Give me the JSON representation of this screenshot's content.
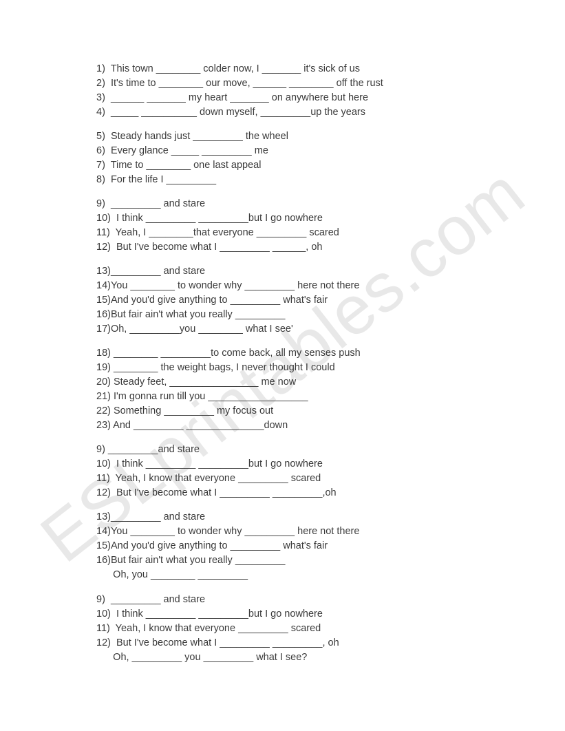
{
  "watermark": "ESLprintables.com",
  "lines": [
    {
      "text": "1)  This town ________ colder now, I _______ it's sick of us"
    },
    {
      "text": "2)  It's time to ________ our move, ______ ________ off the rust"
    },
    {
      "text": "3)  ______ _______ my heart _______ on anywhere but here"
    },
    {
      "text": "4)  _____ __________ down myself, _________up the years"
    },
    {
      "gap": true
    },
    {
      "text": "5)  Steady hands just _________ the wheel"
    },
    {
      "text": "6)  Every glance _____ _________ me"
    },
    {
      "text": "7)  Time to ________ one last appeal"
    },
    {
      "text": "8)  For the life I _________"
    },
    {
      "gap": true
    },
    {
      "text": "9)  _________ and stare"
    },
    {
      "text": "10)  I think _________ _________but I go nowhere"
    },
    {
      "text": "11)  Yeah, I ________that everyone _________ scared"
    },
    {
      "text": "12)  But I've become what I _________ ______, oh"
    },
    {
      "gap": true
    },
    {
      "text": "13)_________ and stare"
    },
    {
      "text": "14)You ________ to wonder why _________ here not there"
    },
    {
      "text": "15)And you'd give anything to _________ what's fair"
    },
    {
      "text": "16)But fair ain't what you really _________"
    },
    {
      "text": "17)Oh, _________you ________ what I see'"
    },
    {
      "gap": true
    },
    {
      "text": "18) ________ _________to come back, all my senses push"
    },
    {
      "text": "19) ________ the weight bags, I never thought I could"
    },
    {
      "text": "20) Steady feet, ________________ me now"
    },
    {
      "text": "21) I'm gonna run till you __________________"
    },
    {
      "text": "22) Something _________ my focus out"
    },
    {
      "text": "23) And _________ ______________down"
    },
    {
      "gap": true
    },
    {
      "text": "9) _________and stare"
    },
    {
      "text": "10)  I think _________ _________but I go nowhere"
    },
    {
      "text": "11)  Yeah, I know that everyone _________ scared"
    },
    {
      "text": "12)  But I've become what I _________ _________,oh"
    },
    {
      "gap": true
    },
    {
      "text": "13)_________ and stare"
    },
    {
      "text": "14)You ________ to wonder why _________ here not there"
    },
    {
      "text": "15)And you'd give anything to _________ what's fair"
    },
    {
      "text": "16)But fair ain't what you really _________"
    },
    {
      "text": "      Oh, you ________ _________"
    },
    {
      "gap": true
    },
    {
      "text": "9)  _________ and stare"
    },
    {
      "text": "10)  I think _________ _________but I go nowhere"
    },
    {
      "text": "11)  Yeah, I know that everyone _________ scared"
    },
    {
      "text": "12)  But I've become what I _________ _________, oh"
    },
    {
      "text": "      Oh, _________ you _________ what I see?"
    }
  ]
}
